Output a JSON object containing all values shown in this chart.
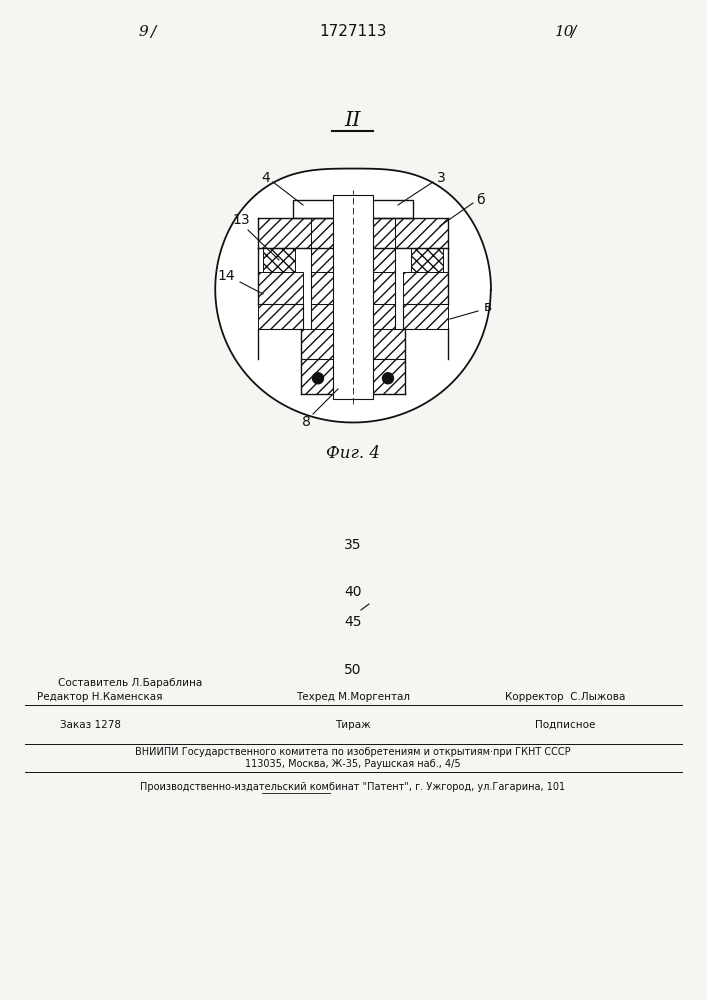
{
  "page_number_left": "9",
  "page_number_right": "10",
  "patent_number": "1727113",
  "figure_label": "Фиг. 4",
  "section_label": "II",
  "label_4": "4",
  "label_3": "3",
  "label_6": "б",
  "label_13": "13",
  "label_14": "14",
  "label_v": "в",
  "label_8": "8",
  "num_35": "35",
  "num_40": "40",
  "num_45": "45",
  "num_50": "50",
  "footer_editor": "Редактор Н.Каменская",
  "footer_sostavitel": "Составитель Л.Бараблина",
  "footer_techred": "Техред М.Моргентал",
  "footer_corrector": "Корректор  С.Лыжова",
  "footer_order": "Заказ 1278",
  "footer_tirazh": "Тираж",
  "footer_podpisnoe": "Подписное",
  "footer_vniiipi": "ВНИИПИ Государственного комитета по изобретениям и открытиям·при ГКНТ СССР",
  "footer_address": "113035, Москва, Ж-35, Раушская наб., 4/5",
  "footer_plant": "Производственно-издательский комбинат \"Патент\", г. Ужгород, ул.Гагарина, 101",
  "bg_color": "#f5f5f2",
  "line_color": "#111111"
}
